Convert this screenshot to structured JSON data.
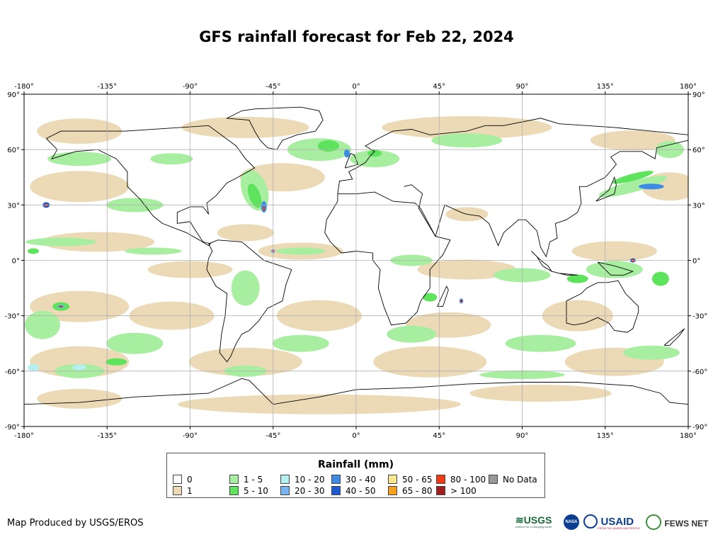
{
  "title": "GFS rainfall forecast for Feb 22, 2024",
  "longitude_ticks": [
    "-180°",
    "-135°",
    "-90°",
    "-45°",
    "0°",
    "45°",
    "90°",
    "135°",
    "180°"
  ],
  "latitude_ticks": [
    "90°",
    "60°",
    "30°",
    "0°",
    "-30°",
    "-60°",
    "-90°"
  ],
  "legend": {
    "title": "Rainfall (mm)",
    "items": [
      {
        "label": "0",
        "color": "#ffffff"
      },
      {
        "label": "1",
        "color": "#ecd9b5"
      },
      {
        "label": "1 - 5",
        "color": "#a8eea0"
      },
      {
        "label": "5 - 10",
        "color": "#5ee35c"
      },
      {
        "label": "10 - 20",
        "color": "#b4f0f0"
      },
      {
        "label": "20 - 30",
        "color": "#7ab4f0"
      },
      {
        "label": "30 - 40",
        "color": "#3c8ce6"
      },
      {
        "label": "40 - 50",
        "color": "#1e5ad2"
      },
      {
        "label": "50 - 65",
        "color": "#fae68c"
      },
      {
        "label": "65 - 80",
        "color": "#f5a01e"
      },
      {
        "label": "80 - 100",
        "color": "#f03c14"
      },
      {
        "label": "> 100",
        "color": "#a01e1e"
      },
      {
        "label": "No Data",
        "color": "#999999"
      }
    ]
  },
  "credit": "Map Produced by USGS/EROS",
  "logos": {
    "usgs": "USGS",
    "usgs_tagline": "science for a changing world",
    "nasa": "NASA",
    "usaid": "USAID",
    "usaid_tagline": "FROM THE AMERICAN PEOPLE",
    "fews": "FEWS NET"
  }
}
